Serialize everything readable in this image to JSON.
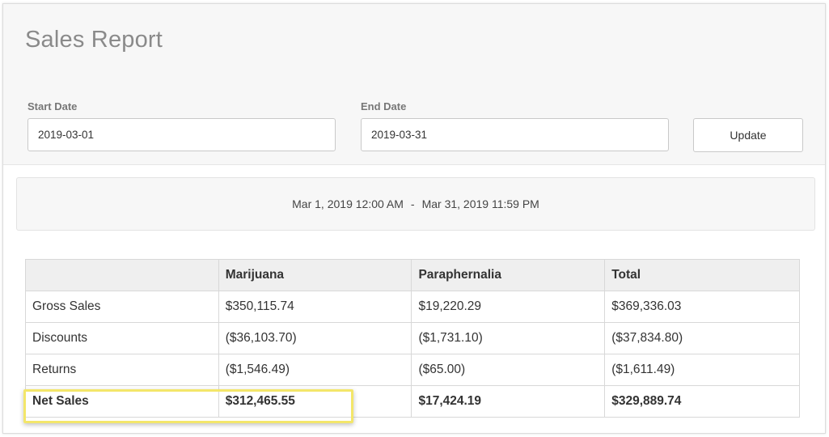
{
  "page": {
    "title": "Sales Report"
  },
  "filters": {
    "start_label": "Start Date",
    "start_value": "2019-03-01",
    "end_label": "End Date",
    "end_value": "2019-03-31",
    "update_label": "Update"
  },
  "range": {
    "start": "Mar 1, 2019 12:00 AM",
    "separator": "-",
    "end": "Mar 31, 2019 11:59 PM"
  },
  "table": {
    "headers": [
      "",
      "Marijuana",
      "Paraphernalia",
      "Total"
    ],
    "rows": [
      [
        "Gross Sales",
        "$350,115.74",
        "$19,220.29",
        "$369,336.03"
      ],
      [
        "Discounts",
        "($36,103.70)",
        "($1,731.10)",
        "($37,834.80)"
      ],
      [
        "Returns",
        "($1,546.49)",
        "($65.00)",
        "($1,611.49)"
      ],
      [
        "Net Sales",
        "$312,465.55",
        "$17,424.19",
        "$329,889.74"
      ]
    ]
  },
  "colors": {
    "highlight": "#f3e66a",
    "header_bg": "#f7f7f7"
  }
}
